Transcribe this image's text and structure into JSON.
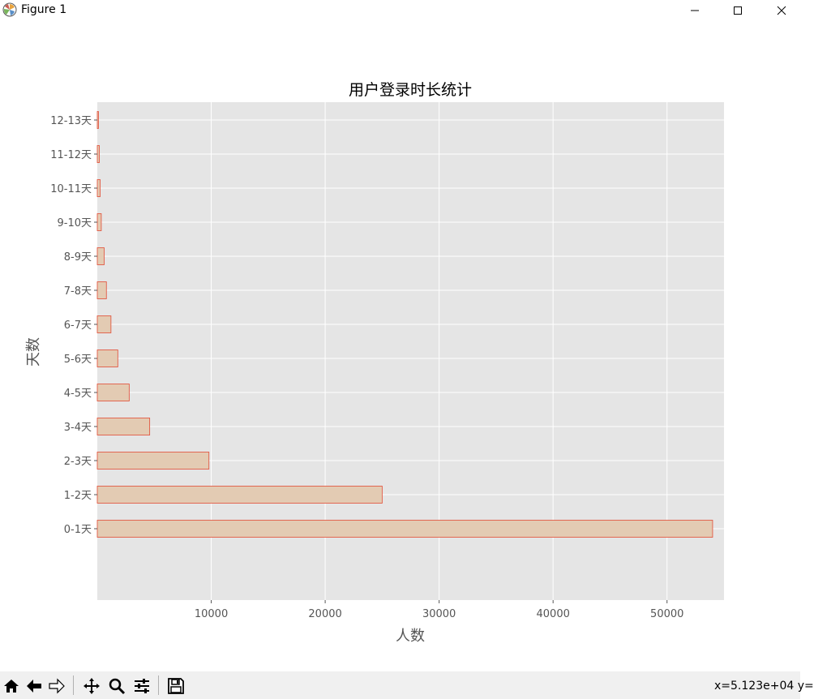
{
  "window": {
    "title": "Figure 1"
  },
  "chart_data": {
    "type": "bar",
    "orientation": "horizontal",
    "title": "用户登录时长统计",
    "xlabel": "人数",
    "ylabel": "天数",
    "categories": [
      "0-1天",
      "1-2天",
      "2-3天",
      "3-4天",
      "4-5天",
      "5-6天",
      "6-7天",
      "7-8天",
      "8-9天",
      "9-10天",
      "10-11天",
      "11-12天",
      "12-13天"
    ],
    "values": [
      54000,
      25000,
      9800,
      4600,
      2800,
      1800,
      1200,
      800,
      600,
      350,
      250,
      180,
      100
    ],
    "xlim": [
      0,
      55000
    ],
    "xticks": [
      10000,
      20000,
      30000,
      40000,
      50000
    ],
    "grid": true,
    "bar_color": "#e3cbb3",
    "edge_color": "#e24a33",
    "axes_background": "#e5e5e5"
  },
  "toolbar": {
    "buttons": [
      {
        "name": "home-icon"
      },
      {
        "name": "back-icon"
      },
      {
        "name": "forward-icon"
      },
      {
        "name": "pan-icon"
      },
      {
        "name": "zoom-icon"
      },
      {
        "name": "configure-subplots-icon"
      },
      {
        "name": "save-icon"
      }
    ],
    "coordinates": "x=5.123e+04 y="
  }
}
